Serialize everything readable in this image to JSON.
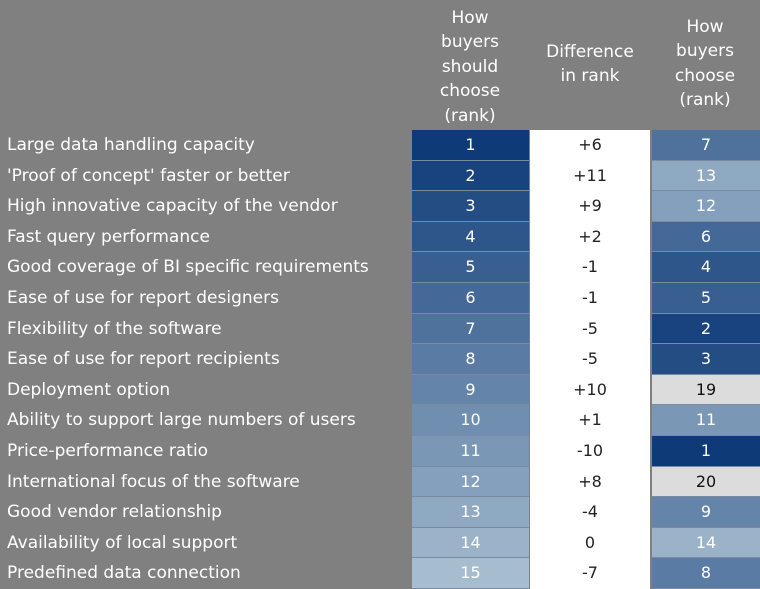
{
  "chart_data": {
    "type": "table",
    "columns": [
      "How\nbuyers\nshould\nchoose\n(rank)",
      "Difference\nin rank",
      "How\nbuyers\nchoose\n(rank)"
    ],
    "rows": [
      {
        "label": "Large data handling capacity",
        "should": 1,
        "diff": "+6",
        "choose": 7
      },
      {
        "label": "'Proof of concept' faster or better",
        "should": 2,
        "diff": "+11",
        "choose": 13
      },
      {
        "label": "High innovative capacity of the vendor",
        "should": 3,
        "diff": "+9",
        "choose": 12
      },
      {
        "label": "Fast query performance",
        "should": 4,
        "diff": "+2",
        "choose": 6
      },
      {
        "label": "Good coverage of BI specific requirements",
        "should": 5,
        "diff": "-1",
        "choose": 4
      },
      {
        "label": "Ease of use for report designers",
        "should": 6,
        "diff": "-1",
        "choose": 5
      },
      {
        "label": "Flexibility of the software",
        "should": 7,
        "diff": "-5",
        "choose": 2
      },
      {
        "label": "Ease of use for report recipients",
        "should": 8,
        "diff": "-5",
        "choose": 3
      },
      {
        "label": "Deployment option",
        "should": 9,
        "diff": "+10",
        "choose": 19
      },
      {
        "label": "Ability to support large numbers of users",
        "should": 10,
        "diff": "+1",
        "choose": 11
      },
      {
        "label": "Price-performance ratio",
        "should": 11,
        "diff": "-10",
        "choose": 1
      },
      {
        "label": "International focus of the software",
        "should": 12,
        "diff": "+8",
        "choose": 20
      },
      {
        "label": "Good vendor relationship",
        "should": 13,
        "diff": "-4",
        "choose": 9
      },
      {
        "label": "Availability of local support",
        "should": 14,
        "diff": "0",
        "choose": 14
      },
      {
        "label": "Predefined data connection",
        "should": 15,
        "diff": "-7",
        "choose": 8
      }
    ],
    "colors": {
      "rank_dark": "#0e3a78",
      "rank_light": "#a6bccf",
      "rank_lightest": "#dcdcdc",
      "diff_bg": "#ffffff",
      "page_bg": "#808080"
    }
  }
}
